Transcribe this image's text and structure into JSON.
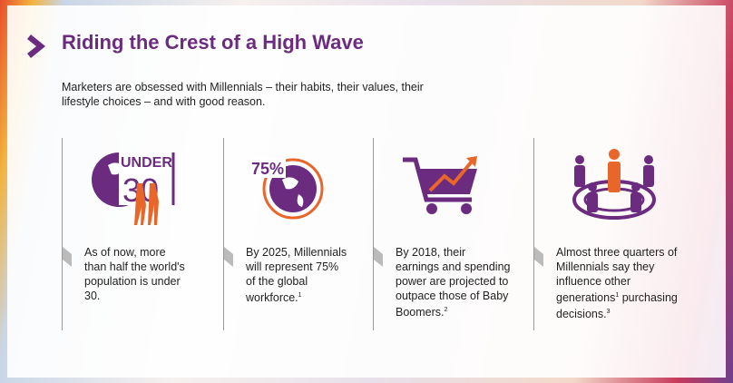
{
  "header": {
    "title": "Riding the Crest of a High Wave",
    "intro": "Marketers are obsessed with Millennials – their habits, their values, their lifestyle choices – and with good reason."
  },
  "columns": [
    {
      "icon_text": [
        "UNDER",
        "30"
      ],
      "body": [
        {
          "text": "As of now, more than half the world's population is under 30."
        }
      ]
    },
    {
      "icon_text": [
        "75%"
      ],
      "body": [
        {
          "text": "By 2025, Millennials will represent 75% of the global workforce.",
          "sup": "1"
        }
      ]
    },
    {
      "body": [
        {
          "text": "By 2018, their earnings and spending power are projected to outpace those of Baby Boomers.",
          "sup": "2"
        }
      ]
    },
    {
      "body": [
        {
          "text": "Almost three quarters of Millennials say they influence other generations",
          "sup": "1"
        },
        {
          "text": " purchasing decisions.",
          "sup": "3"
        }
      ]
    }
  ]
}
